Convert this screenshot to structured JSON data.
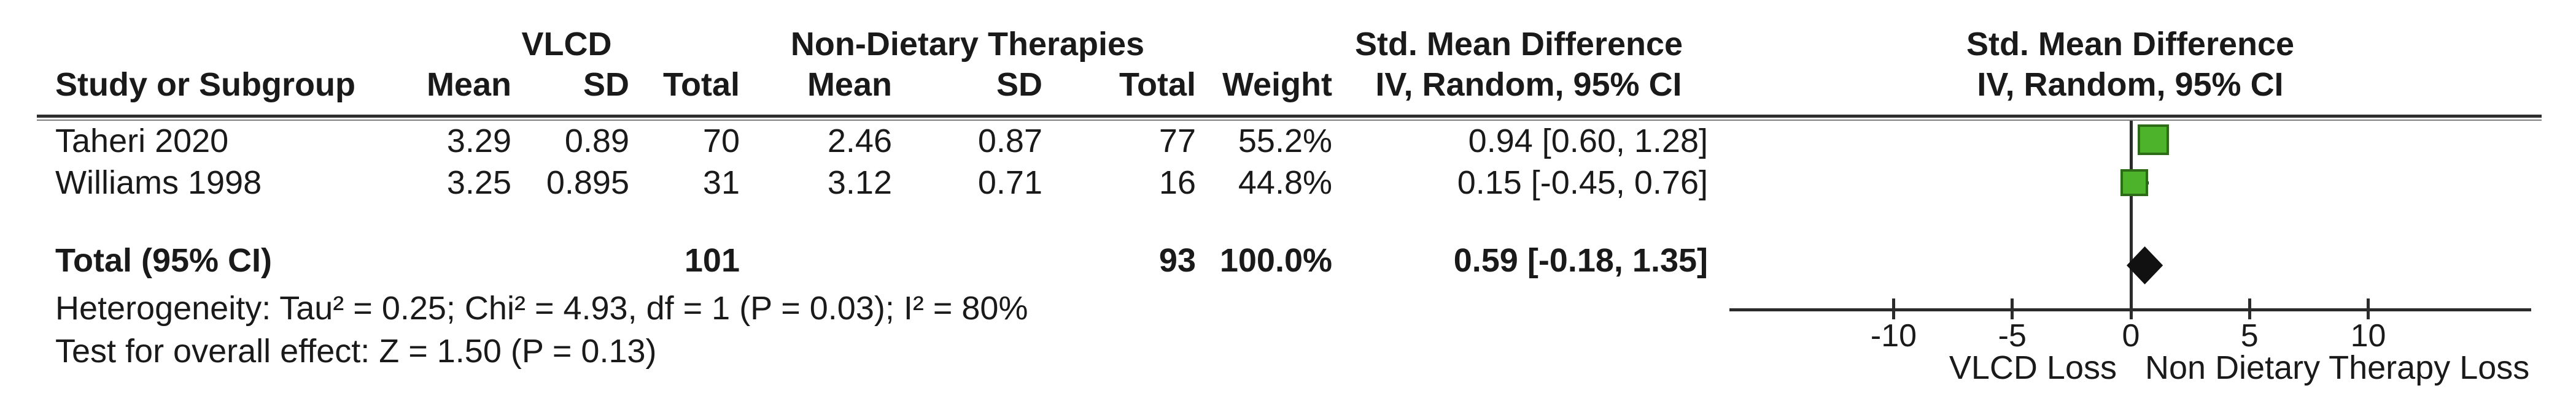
{
  "table": {
    "group_headers": {
      "vlcd": "VLCD",
      "non_dietary": "Non-Dietary Therapies",
      "smd_left": "Std. Mean Difference",
      "smd_right": "Std. Mean Difference"
    },
    "sub_headers": {
      "study": "Study or Subgroup",
      "mean1": "Mean",
      "sd1": "SD",
      "total1": "Total",
      "mean2": "Mean",
      "sd2": "SD",
      "total2": "Total",
      "weight": "Weight",
      "iv_left": "IV, Random, 95% CI",
      "iv_right": "IV, Random, 95% CI"
    },
    "rows": [
      {
        "study": "Taheri 2020",
        "mean1": "3.29",
        "sd1": "0.89",
        "total1": "70",
        "mean2": "2.46",
        "sd2": "0.87",
        "total2": "77",
        "weight": "55.2%",
        "ci": "0.94 [0.60, 1.28]"
      },
      {
        "study": "Williams 1998",
        "mean1": "3.25",
        "sd1": "0.895",
        "total1": "31",
        "mean2": "3.12",
        "sd2": "0.71",
        "total2": "16",
        "weight": "44.8%",
        "ci": "0.15 [-0.45, 0.76]"
      }
    ],
    "total_row": {
      "label": "Total (95% CI)",
      "total1": "101",
      "total2": "93",
      "weight": "100.0%",
      "ci": "0.59 [-0.18, 1.35]"
    },
    "heterogeneity": "Heterogeneity: Tau² = 0.25; Chi² = 4.93, df = 1 (P = 0.03); I² = 80%",
    "overall_effect": "Test for overall effect: Z = 1.50 (P = 0.13)"
  },
  "plot": {
    "tick_labels": [
      "-10",
      "-5",
      "0",
      "5",
      "10"
    ],
    "favours_left": "VLCD Loss",
    "favours_right": "Non Dietary Therapy Loss",
    "marker_fill": "#4cb32b",
    "marker_border": "#2e6b18",
    "diamond_color": "#111111",
    "line_color": "#2b2b2b"
  },
  "chart_data": {
    "type": "scatter",
    "subtype": "forest_plot",
    "effect_measure": "Std. Mean Difference",
    "method": "IV, Random, 95% CI",
    "group1_label": "VLCD",
    "group2_label": "Non-Dietary Therapies",
    "studies": [
      {
        "name": "Taheri 2020",
        "group1": {
          "mean": 3.29,
          "sd": 0.89,
          "total": 70
        },
        "group2": {
          "mean": 2.46,
          "sd": 0.87,
          "total": 77
        },
        "weight_pct": 55.2,
        "smd": 0.94,
        "ci_low": 0.6,
        "ci_high": 1.28
      },
      {
        "name": "Williams 1998",
        "group1": {
          "mean": 3.25,
          "sd": 0.895,
          "total": 31
        },
        "group2": {
          "mean": 3.12,
          "sd": 0.71,
          "total": 16
        },
        "weight_pct": 44.8,
        "smd": 0.15,
        "ci_low": -0.45,
        "ci_high": 0.76
      }
    ],
    "total": {
      "name": "Total (95% CI)",
      "total_group1": 101,
      "total_group2": 93,
      "weight_pct": 100.0,
      "smd": 0.59,
      "ci_low": -0.18,
      "ci_high": 1.35
    },
    "heterogeneity": {
      "tau2": 0.25,
      "chi2": 4.93,
      "df": 1,
      "p": 0.03,
      "i2_pct": 80
    },
    "overall_effect": {
      "z": 1.5,
      "p": 0.13
    },
    "x_ticks": [
      -10,
      -5,
      0,
      5,
      10
    ],
    "x_axis_drawn_range": [
      -16.9,
      16.9
    ],
    "xlabel_left": "VLCD Loss",
    "xlabel_right": "Non Dietary Therapy Loss"
  }
}
